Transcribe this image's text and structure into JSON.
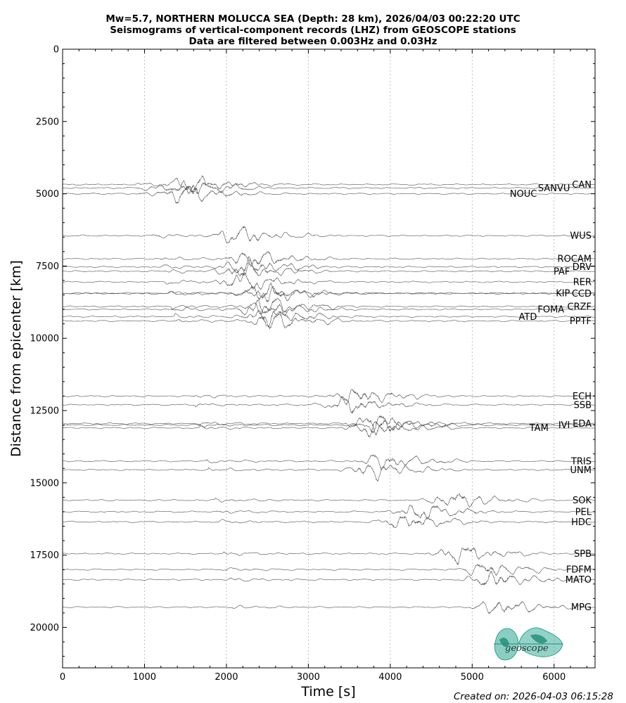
{
  "chart_data": {
    "type": "line",
    "title_lines": [
      "Mw=5.7, NORTHERN MOLUCCA SEA (Depth: 28 km), 2026/04/03 00:22:20 UTC",
      "Seismograms of vertical-component records (LHZ) from GEOSCOPE stations",
      "Data are filtered between 0.003Hz and 0.03Hz"
    ],
    "xlabel": "Time [s]",
    "ylabel": "Distance from epicenter [km]",
    "xlim": [
      0,
      6500
    ],
    "ylim": [
      0,
      21400
    ],
    "y_inverted": true,
    "x_ticks": [
      0,
      1000,
      2000,
      3000,
      4000,
      5000,
      6000
    ],
    "y_ticks": [
      0,
      2500,
      5000,
      7500,
      10000,
      12500,
      15000,
      17500,
      20000
    ],
    "grid": "vertical-dotted",
    "trace_color": "#555555",
    "stations": [
      {
        "code": "CAN",
        "distance": 4680,
        "p_onset": 880,
        "burst": 1600
      },
      {
        "code": "SANVU",
        "distance": 4800,
        "p_onset": 900,
        "burst": 1500
      },
      {
        "code": "NOUC",
        "distance": 5000,
        "p_onset": 920,
        "burst": 1500
      },
      {
        "code": "WUS",
        "distance": 6450,
        "p_onset": 1100,
        "burst": 2150
      },
      {
        "code": "ROCAM",
        "distance": 7250,
        "p_onset": 1200,
        "burst": 2300
      },
      {
        "code": "DRV",
        "distance": 7530,
        "p_onset": 1220,
        "burst": 2250
      },
      {
        "code": "PAF",
        "distance": 7680,
        "p_onset": 1240,
        "burst": 2200
      },
      {
        "code": "RER",
        "distance": 8050,
        "p_onset": 1260,
        "burst": 2200
      },
      {
        "code": "CCD",
        "distance": 8450,
        "p_onset": 1300,
        "burst": 2500
      },
      {
        "code": "KIP",
        "distance": 8440,
        "p_onset": 1290,
        "burst": 2450
      },
      {
        "code": "CRZF",
        "distance": 8900,
        "p_onset": 1330,
        "burst": 2500
      },
      {
        "code": "FOMA",
        "distance": 9000,
        "p_onset": 1340,
        "burst": 2450
      },
      {
        "code": "ATD",
        "distance": 9250,
        "p_onset": 1370,
        "burst": 2500
      },
      {
        "code": "PPTF",
        "distance": 9400,
        "p_onset": 1380,
        "burst": 2550
      },
      {
        "code": "ECH",
        "distance": 12000,
        "p_onset": 1600,
        "burst": 3600
      },
      {
        "code": "SSB",
        "distance": 12300,
        "p_onset": 1620,
        "burst": 3500
      },
      {
        "code": "EDA",
        "distance": 12950,
        "p_onset": 1660,
        "burst": 3800
      },
      {
        "code": "IVI",
        "distance": 13000,
        "p_onset": 1670,
        "burst": 3900
      },
      {
        "code": "TAM",
        "distance": 13100,
        "p_onset": 1680,
        "burst": 3800
      },
      {
        "code": "TRIS",
        "distance": 14250,
        "p_onset": 1760,
        "burst": 3950
      },
      {
        "code": "UNM",
        "distance": 14550,
        "p_onset": 1780,
        "burst": 3800
      },
      {
        "code": "SOK",
        "distance": 15600,
        "p_onset": 1860,
        "burst": 4800
      },
      {
        "code": "PEL",
        "distance": 16000,
        "p_onset": 1880,
        "burst": 4350
      },
      {
        "code": "HDC",
        "distance": 16350,
        "p_onset": 1900,
        "burst": 4200
      },
      {
        "code": "SPB",
        "distance": 17450,
        "p_onset": 1960,
        "burst": 4850
      },
      {
        "code": "FDFM",
        "distance": 18000,
        "p_onset": 2000,
        "burst": 5200
      },
      {
        "code": "MATO",
        "distance": 18350,
        "p_onset": 2020,
        "burst": 5250
      },
      {
        "code": "MPG",
        "distance": 19300,
        "p_onset": 2080,
        "burst": 5350
      }
    ]
  },
  "footer": {
    "created": "Created on: 2026-04-03 06:15:28"
  },
  "logo": {
    "text": "geoscope",
    "color": "#2aa58f"
  }
}
